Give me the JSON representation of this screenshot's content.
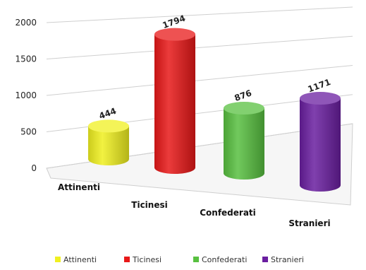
{
  "chart_data": {
    "type": "bar",
    "style": "3d-cylinder",
    "title": "",
    "xlabel": "",
    "ylabel": "",
    "ylim": [
      0,
      2000
    ],
    "y_ticks": [
      0,
      500,
      1000,
      1500,
      2000
    ],
    "y_tick_labels": [
      "0",
      "500",
      "1000",
      "1500",
      "2000"
    ],
    "grid": true,
    "legend_position": "bottom",
    "categories": [
      "Attinenti",
      "Ticinesi",
      "Confederati",
      "Stranieri"
    ],
    "values": [
      444,
      1794,
      876,
      1171
    ],
    "data_labels": [
      "444",
      "1794",
      "876",
      "1171"
    ],
    "colors": [
      "#f0f020",
      "#e81818",
      "#58c040",
      "#6a1ea0"
    ],
    "legend": [
      {
        "label": "Attinenti",
        "color": "#f0f020"
      },
      {
        "label": "Ticinesi",
        "color": "#e81818"
      },
      {
        "label": "Confederati",
        "color": "#58c040"
      },
      {
        "label": "Stranieri",
        "color": "#6a1ea0"
      }
    ]
  }
}
